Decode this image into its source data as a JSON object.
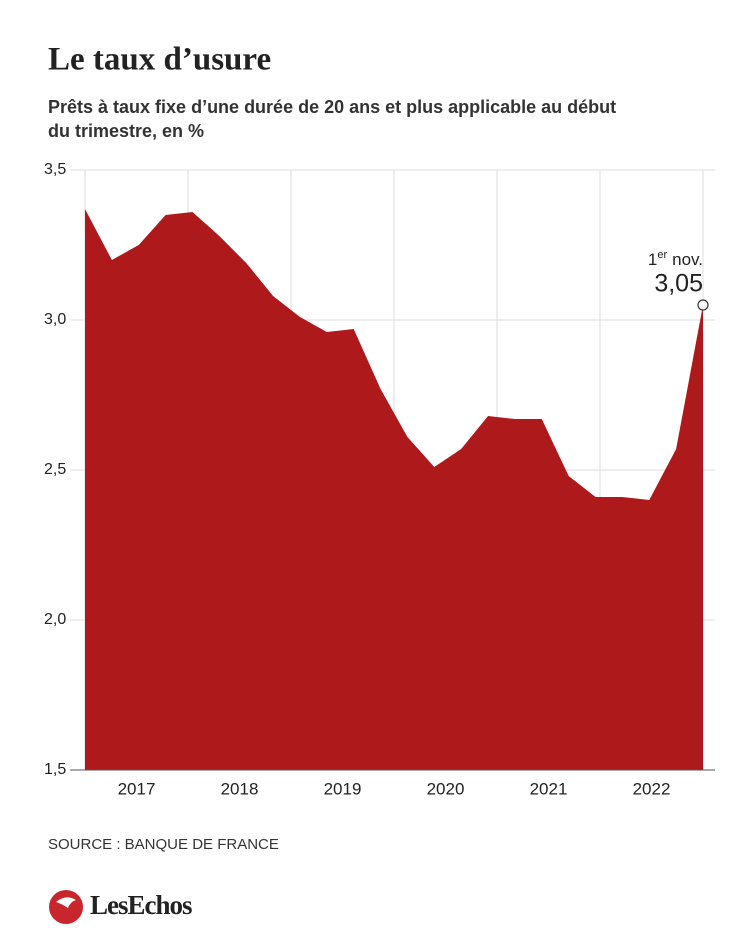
{
  "title": "Le taux d’usure",
  "subtitle_lines": [
    "Prêts à taux fixe d’une durée de 20 ans et plus applicable au début",
    "du trimestre, en %"
  ],
  "chart_data": {
    "type": "area",
    "color": "#ae191c",
    "categories": [
      null,
      null,
      null,
      null,
      null,
      null,
      null,
      null,
      null,
      null,
      null,
      null,
      null,
      null,
      null,
      null,
      null,
      null,
      null,
      null,
      null,
      null,
      null,
      null
    ],
    "values": [
      3.37,
      3.2,
      3.25,
      3.35,
      3.36,
      3.28,
      3.19,
      3.08,
      3.01,
      2.96,
      2.97,
      2.77,
      2.61,
      2.51,
      2.57,
      2.68,
      2.67,
      2.67,
      2.48,
      2.41,
      2.41,
      2.4,
      2.57,
      3.05
    ],
    "value_labels": [
      null,
      null,
      null,
      null,
      null,
      null,
      null,
      null,
      null,
      null,
      null,
      null,
      null,
      null,
      null,
      null,
      null,
      null,
      null,
      null,
      null,
      null,
      null,
      "3,05"
    ],
    "year_labels": [
      "2017",
      "2018",
      "2019",
      "2020",
      "2021",
      "2022"
    ],
    "annotation": {
      "number": "1",
      "sup": "er",
      "text": "nov."
    },
    "ylim": [
      1.5,
      3.5
    ],
    "yticks": [
      {
        "value": 1.5,
        "label": "1,5"
      },
      {
        "value": 2.0,
        "label": "2,0"
      },
      {
        "value": 2.5,
        "label": "2,5"
      },
      {
        "value": 3.0,
        "label": "3,0"
      },
      {
        "value": 3.5,
        "label": "3,5"
      }
    ],
    "grid": true
  },
  "source": "SOURCE : BANQUE DE FRANCE",
  "logo": "LesEchos"
}
